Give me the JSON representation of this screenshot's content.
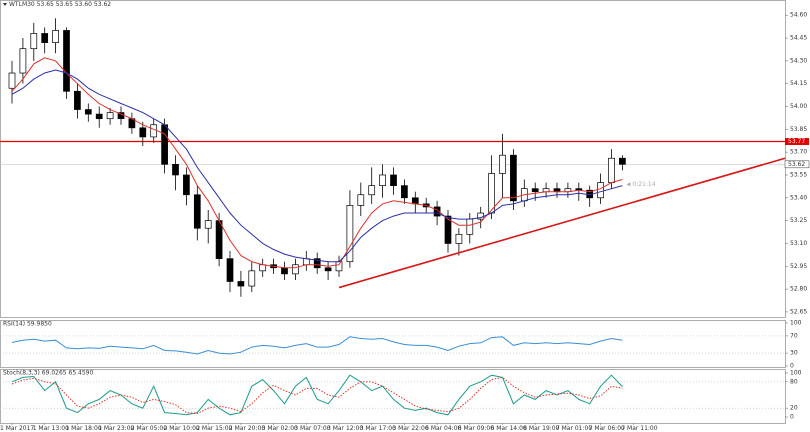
{
  "chart_data": {
    "type": "candlestick",
    "title": "WTLM30 53.65 53.65 53.60 53.62",
    "categories": [
      "1 Mar 2017",
      null,
      null,
      "1 Mar 13:00",
      null,
      null,
      "1 Mar 18:00",
      null,
      null,
      "1 Mar 23:00",
      null,
      null,
      "2 Mar 05:00",
      null,
      null,
      "2 Mar 10:00",
      null,
      null,
      "2 Mar 15:00",
      null,
      null,
      "2 Mar 20:00",
      null,
      null,
      "3 Mar 02:00",
      null,
      null,
      "3 Mar 07:00",
      null,
      null,
      "3 Mar 12:00",
      null,
      null,
      "3 Mar 17:00",
      null,
      null,
      "3 Mar 22:00",
      null,
      null,
      "6 Mar 04:00",
      null,
      null,
      "6 Mar 09:00",
      null,
      null,
      "6 Mar 14:00",
      null,
      null,
      "6 Mar 19:00",
      null,
      null,
      "7 Mar 01:00",
      null,
      null,
      "7 Mar 06:00",
      null,
      null,
      "7 Mar 11:00"
    ],
    "open": [
      54.12,
      54.22,
      54.38,
      54.48,
      54.42,
      54.5,
      54.1,
      53.98,
      53.95,
      53.92,
      53.96,
      53.92,
      53.86,
      53.8,
      53.88,
      53.62,
      53.55,
      53.42,
      53.2,
      53.25,
      53.0,
      52.85,
      52.82,
      52.92,
      52.96,
      52.94,
      52.9,
      52.96,
      53.0,
      52.94,
      52.92,
      52.98,
      53.35,
      53.42,
      53.48,
      53.55,
      53.48,
      53.4,
      53.36,
      53.34,
      53.28,
      53.1,
      53.16,
      53.26,
      53.3,
      53.56,
      53.68,
      53.38,
      53.46,
      53.44,
      53.46,
      53.44,
      53.46,
      53.45,
      53.4,
      53.5,
      53.66,
      null
    ],
    "high": [
      54.3,
      54.45,
      54.55,
      54.52,
      54.58,
      54.52,
      54.15,
      54.02,
      54.0,
      53.99,
      54.0,
      53.96,
      53.9,
      53.92,
      53.92,
      53.68,
      53.6,
      53.48,
      53.32,
      53.3,
      53.05,
      52.92,
      52.98,
      53.0,
      53.0,
      52.98,
      53.0,
      53.05,
      53.04,
      52.98,
      53.02,
      53.45,
      53.5,
      53.6,
      53.62,
      53.6,
      53.52,
      53.44,
      53.4,
      53.38,
      53.32,
      53.2,
      53.3,
      53.34,
      53.68,
      53.82,
      53.72,
      53.52,
      53.5,
      53.5,
      53.5,
      53.5,
      53.5,
      53.48,
      53.56,
      53.72,
      53.68,
      null
    ],
    "low": [
      54.02,
      54.15,
      54.3,
      54.35,
      54.35,
      54.05,
      53.92,
      53.9,
      53.86,
      53.88,
      53.88,
      53.82,
      53.74,
      53.76,
      53.56,
      53.45,
      53.35,
      53.12,
      53.1,
      52.95,
      52.78,
      52.75,
      52.78,
      52.88,
      52.9,
      52.86,
      52.86,
      52.92,
      52.9,
      52.86,
      52.88,
      52.94,
      53.28,
      53.36,
      53.4,
      53.42,
      53.36,
      53.3,
      53.3,
      53.22,
      53.04,
      53.02,
      53.1,
      53.2,
      53.26,
      53.4,
      53.32,
      53.34,
      53.38,
      53.4,
      53.4,
      53.4,
      53.38,
      53.34,
      53.36,
      53.46,
      53.58,
      null
    ],
    "close": [
      54.22,
      54.38,
      54.48,
      54.42,
      54.5,
      54.1,
      53.98,
      53.95,
      53.92,
      53.96,
      53.92,
      53.86,
      53.8,
      53.88,
      53.62,
      53.55,
      53.42,
      53.2,
      53.25,
      53.0,
      52.85,
      52.82,
      52.92,
      52.96,
      52.94,
      52.9,
      52.96,
      53.0,
      52.94,
      52.92,
      52.98,
      53.35,
      53.42,
      53.48,
      53.55,
      53.48,
      53.4,
      53.36,
      53.34,
      53.28,
      53.1,
      53.16,
      53.26,
      53.3,
      53.56,
      53.68,
      53.38,
      53.46,
      53.44,
      53.46,
      53.44,
      53.46,
      53.45,
      53.4,
      53.5,
      53.66,
      53.62,
      null
    ],
    "up_color": "#ffffff",
    "down_color": "#000000",
    "overlays": [
      {
        "color": "#e0302a",
        "values": [
          54.1,
          54.18,
          54.28,
          54.32,
          54.3,
          54.22,
          54.15,
          54.08,
          54.02,
          53.98,
          53.95,
          53.92,
          53.88,
          53.85,
          53.82,
          53.72,
          53.62,
          53.48,
          53.38,
          53.25,
          53.12,
          53.02,
          52.98,
          52.96,
          52.95,
          52.94,
          52.94,
          52.96,
          52.96,
          52.95,
          52.96,
          53.08,
          53.2,
          53.3,
          53.36,
          53.38,
          53.37,
          53.36,
          53.35,
          53.32,
          53.26,
          53.22,
          53.22,
          53.24,
          53.32,
          53.4,
          53.4,
          53.42,
          53.43,
          53.44,
          53.44,
          53.44,
          53.45,
          53.44,
          53.46,
          53.5,
          53.52,
          null
        ]
      },
      {
        "color": "#2b2fa8",
        "values": [
          54.08,
          54.12,
          54.18,
          54.22,
          54.24,
          54.22,
          54.18,
          54.12,
          54.08,
          54.05,
          54.02,
          53.99,
          53.96,
          53.92,
          53.88,
          53.8,
          53.72,
          53.6,
          53.5,
          53.4,
          53.3,
          53.22,
          53.16,
          53.1,
          53.06,
          53.03,
          53.01,
          53.0,
          52.99,
          52.98,
          52.98,
          53.05,
          53.14,
          53.2,
          53.25,
          53.28,
          53.3,
          53.3,
          53.3,
          53.3,
          53.27,
          53.26,
          53.26,
          53.27,
          53.3,
          53.35,
          53.36,
          53.38,
          53.4,
          53.41,
          53.42,
          53.42,
          53.43,
          53.42,
          53.44,
          53.46,
          53.48,
          null
        ]
      }
    ],
    "ylim": [
      52.61,
      54.7
    ],
    "yticks": [
      {
        "value": 54.6,
        "label": "54.60"
      },
      54.45,
      {
        "value": 54.3,
        "label": "54.30"
      },
      54.15,
      {
        "value": 54.0,
        "label": "54.00"
      },
      53.85,
      {
        "value": 53.7,
        "label": "53.70"
      },
      53.55,
      {
        "value": 53.4,
        "label": "53.40"
      },
      53.25,
      {
        "value": 53.1,
        "label": "53.10"
      },
      52.95,
      {
        "value": 52.8,
        "label": "52.80"
      },
      52.65
    ],
    "hlines": [
      {
        "value": 53.77,
        "color": "#e00000"
      }
    ],
    "current_price": 53.62,
    "countdown": "0:21:14",
    "trendline": {
      "x": [
        30,
        71
      ],
      "values": [
        52.81,
        53.66
      ],
      "color": "#d91515"
    },
    "panels": [
      {
        "type": "line",
        "title": "RSI(14) 59.9850",
        "ylim": [
          0,
          100
        ],
        "yticks": [
          100,
          70,
          30,
          0
        ],
        "levels": [
          70,
          30
        ],
        "series": [
          {
            "color": "#3a8fd6",
            "dash": false,
            "values": [
              55,
              60,
              62,
              58,
              60,
              42,
              40,
              42,
              41,
              46,
              44,
              42,
              40,
              48,
              36,
              35,
              32,
              28,
              36,
              30,
              28,
              32,
              44,
              48,
              46,
              42,
              48,
              52,
              44,
              44,
              50,
              68,
              64,
              62,
              64,
              56,
              50,
              48,
              48,
              44,
              36,
              46,
              52,
              54,
              66,
              68,
              48,
              54,
              52,
              54,
              52,
              54,
              52,
              50,
              58,
              64,
              60,
              null
            ]
          }
        ]
      },
      {
        "type": "line",
        "title": "Stoch(8,3,3) 69.0265 65.4590",
        "ylim": [
          0,
          100
        ],
        "yticks": [
          100,
          80,
          20,
          0
        ],
        "levels": [
          80,
          20
        ],
        "series": [
          {
            "color": "#1a9c8c",
            "dash": false,
            "values": [
              80,
              90,
              92,
              60,
              80,
              20,
              10,
              30,
              40,
              60,
              50,
              30,
              20,
              70,
              10,
              8,
              5,
              10,
              40,
              20,
              5,
              10,
              70,
              85,
              60,
              30,
              70,
              90,
              40,
              30,
              60,
              95,
              80,
              60,
              70,
              40,
              20,
              15,
              20,
              10,
              5,
              40,
              70,
              80,
              95,
              90,
              30,
              50,
              40,
              60,
              50,
              60,
              40,
              30,
              70,
              95,
              69,
              null
            ]
          },
          {
            "color": "#e0302a",
            "dash": true,
            "values": [
              75,
              84,
              88,
              80,
              76,
              50,
              25,
              20,
              30,
              45,
              50,
              45,
              33,
              40,
              35,
              28,
              10,
              8,
              20,
              25,
              20,
              12,
              30,
              55,
              72,
              60,
              50,
              65,
              65,
              50,
              45,
              65,
              80,
              80,
              70,
              55,
              40,
              25,
              18,
              15,
              12,
              20,
              40,
              65,
              85,
              90,
              70,
              55,
              45,
              50,
              52,
              54,
              50,
              42,
              48,
              70,
              65.5,
              null
            ]
          }
        ]
      }
    ]
  }
}
